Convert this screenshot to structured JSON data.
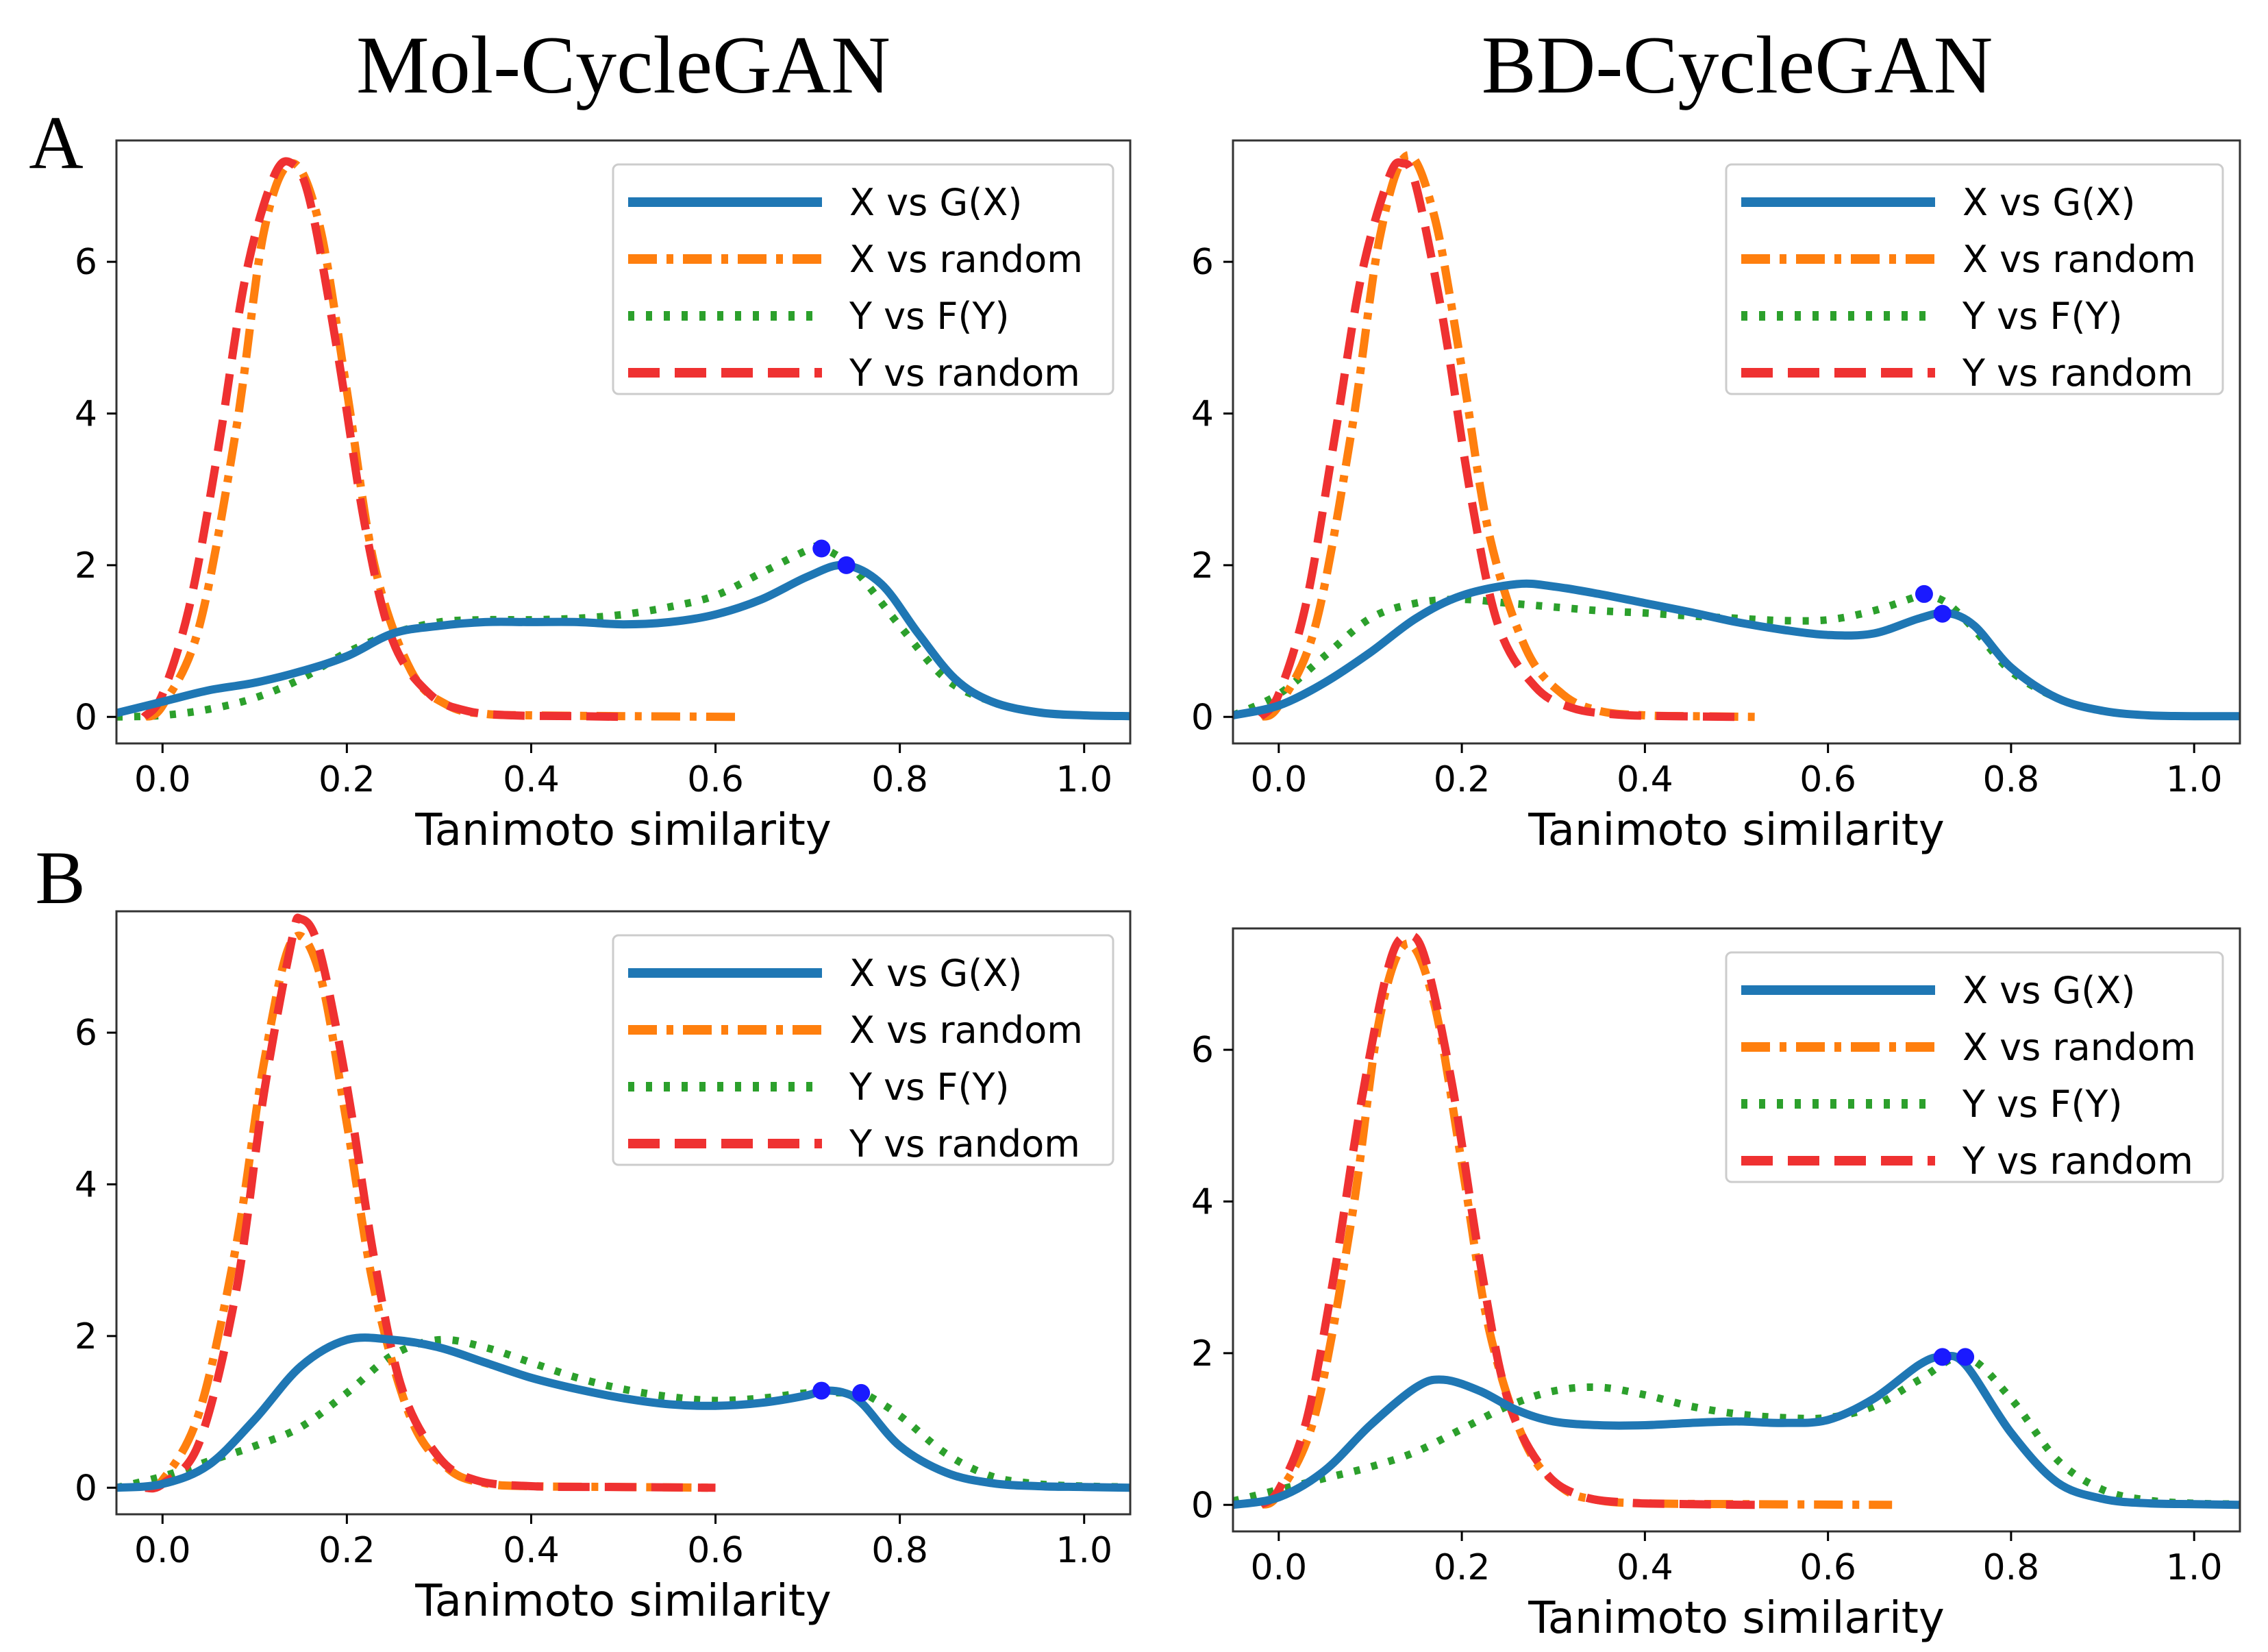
{
  "column_titles": [
    "Mol-CycleGAN",
    "BD-CycleGAN"
  ],
  "row_labels": [
    "A",
    "B"
  ],
  "styles": {
    "X vs G(X)": {
      "color": "#1f77b4",
      "dash": "none"
    },
    "X vs random": {
      "color": "#ff7f0e",
      "dash": "dashdot"
    },
    "Y vs F(Y)": {
      "color": "#2ca02c",
      "dash": "dotted"
    },
    "Y vs random": {
      "color": "#ef3131",
      "dash": "dashed"
    },
    "marker": "#1a1aff"
  },
  "chart_data": [
    {
      "type": "line",
      "panel": "A / Mol-CycleGAN",
      "xlabel": "Tanimoto similarity",
      "ylabel": "",
      "xlim": [
        -0.05,
        1.05
      ],
      "ylim": [
        -0.35,
        7.6
      ],
      "xticks": [
        "0.0",
        "0.2",
        "0.4",
        "0.6",
        "0.8",
        "1.0"
      ],
      "yticks": [
        "0",
        "2",
        "4",
        "6"
      ],
      "legend": [
        "X vs G(X)",
        "X vs random",
        "Y vs F(Y)",
        "Y vs random"
      ],
      "series": [
        {
          "name": "X vs G(X)",
          "x": [
            -0.05,
            0.0,
            0.05,
            0.1,
            0.15,
            0.2,
            0.25,
            0.3,
            0.35,
            0.4,
            0.45,
            0.5,
            0.55,
            0.6,
            0.65,
            0.7,
            0.74,
            0.78,
            0.82,
            0.86,
            0.9,
            0.95,
            1.0,
            1.05
          ],
          "y": [
            0.05,
            0.2,
            0.35,
            0.45,
            0.6,
            0.8,
            1.1,
            1.2,
            1.25,
            1.25,
            1.25,
            1.22,
            1.25,
            1.35,
            1.55,
            1.85,
            2.0,
            1.75,
            1.1,
            0.5,
            0.2,
            0.06,
            0.02,
            0.01
          ]
        },
        {
          "name": "X vs random",
          "x": [
            -0.02,
            0.0,
            0.04,
            0.08,
            0.11,
            0.14,
            0.17,
            0.2,
            0.23,
            0.27,
            0.31,
            0.35,
            0.4,
            0.5,
            0.63
          ],
          "y": [
            0.0,
            0.15,
            1.2,
            3.8,
            6.4,
            7.3,
            6.5,
            4.3,
            2.0,
            0.6,
            0.15,
            0.04,
            0.02,
            0.01,
            0.0
          ]
        },
        {
          "name": "Y vs F(Y)",
          "x": [
            -0.05,
            0.0,
            0.05,
            0.1,
            0.15,
            0.2,
            0.25,
            0.3,
            0.35,
            0.4,
            0.45,
            0.5,
            0.55,
            0.6,
            0.65,
            0.7,
            0.715,
            0.75,
            0.8,
            0.85,
            0.9,
            0.95,
            1.0,
            1.05
          ],
          "y": [
            0.0,
            0.02,
            0.1,
            0.25,
            0.5,
            0.85,
            1.1,
            1.25,
            1.28,
            1.28,
            1.3,
            1.35,
            1.45,
            1.6,
            1.9,
            2.2,
            2.23,
            1.95,
            1.2,
            0.5,
            0.2,
            0.06,
            0.02,
            0.01
          ]
        },
        {
          "name": "Y vs random",
          "x": [
            -0.02,
            0.0,
            0.03,
            0.06,
            0.09,
            0.12,
            0.14,
            0.16,
            0.19,
            0.22,
            0.25,
            0.29,
            0.33,
            0.38,
            0.45,
            0.5
          ],
          "y": [
            0.0,
            0.3,
            1.5,
            3.5,
            5.8,
            7.1,
            7.3,
            6.8,
            4.8,
            2.5,
            1.0,
            0.3,
            0.08,
            0.02,
            0.01,
            0.0
          ]
        }
      ],
      "markers": [
        {
          "x": 0.715,
          "y": 2.22
        },
        {
          "x": 0.742,
          "y": 2.0
        }
      ]
    },
    {
      "type": "line",
      "panel": "A / BD-CycleGAN",
      "xlabel": "Tanimoto similarity",
      "ylabel": "",
      "xlim": [
        -0.05,
        1.05
      ],
      "ylim": [
        -0.35,
        7.6
      ],
      "xticks": [
        "0.0",
        "0.2",
        "0.4",
        "0.6",
        "0.8",
        "1.0"
      ],
      "yticks": [
        "0",
        "2",
        "4",
        "6"
      ],
      "legend": [
        "X vs G(X)",
        "X vs random",
        "Y vs F(Y)",
        "Y vs random"
      ],
      "series": [
        {
          "name": "X vs G(X)",
          "x": [
            -0.05,
            0.0,
            0.05,
            0.1,
            0.15,
            0.2,
            0.26,
            0.3,
            0.35,
            0.4,
            0.45,
            0.5,
            0.55,
            0.6,
            0.65,
            0.7,
            0.73,
            0.76,
            0.8,
            0.85,
            0.9,
            0.95,
            1.0,
            1.05
          ],
          "y": [
            0.02,
            0.15,
            0.45,
            0.85,
            1.3,
            1.6,
            1.75,
            1.72,
            1.62,
            1.5,
            1.38,
            1.25,
            1.15,
            1.08,
            1.1,
            1.3,
            1.37,
            1.2,
            0.65,
            0.25,
            0.08,
            0.02,
            0.01,
            0.01
          ]
        },
        {
          "name": "X vs random",
          "x": [
            -0.02,
            0.0,
            0.04,
            0.08,
            0.11,
            0.14,
            0.17,
            0.2,
            0.23,
            0.27,
            0.31,
            0.35,
            0.4,
            0.45,
            0.52
          ],
          "y": [
            0.0,
            0.15,
            1.2,
            3.8,
            6.3,
            7.4,
            6.6,
            4.6,
            2.4,
            0.9,
            0.3,
            0.08,
            0.02,
            0.01,
            0.0
          ]
        },
        {
          "name": "Y vs F(Y)",
          "x": [
            -0.05,
            0.0,
            0.05,
            0.1,
            0.15,
            0.2,
            0.25,
            0.3,
            0.35,
            0.4,
            0.45,
            0.5,
            0.55,
            0.6,
            0.65,
            0.7,
            0.705,
            0.73,
            0.76,
            0.8,
            0.85,
            0.9,
            0.95,
            1.0,
            1.05
          ],
          "y": [
            0.02,
            0.3,
            0.8,
            1.3,
            1.5,
            1.55,
            1.5,
            1.45,
            1.4,
            1.37,
            1.33,
            1.3,
            1.27,
            1.28,
            1.4,
            1.6,
            1.62,
            1.5,
            1.15,
            0.6,
            0.25,
            0.08,
            0.02,
            0.01,
            0.01
          ]
        },
        {
          "name": "Y vs random",
          "x": [
            -0.02,
            0.0,
            0.03,
            0.06,
            0.09,
            0.12,
            0.135,
            0.15,
            0.18,
            0.21,
            0.24,
            0.28,
            0.32,
            0.37,
            0.43,
            0.5
          ],
          "y": [
            0.0,
            0.3,
            1.5,
            3.6,
            5.8,
            7.1,
            7.3,
            7.0,
            5.2,
            2.9,
            1.2,
            0.4,
            0.12,
            0.03,
            0.01,
            0.0
          ]
        }
      ],
      "markers": [
        {
          "x": 0.705,
          "y": 1.62
        },
        {
          "x": 0.725,
          "y": 1.36
        }
      ]
    },
    {
      "type": "line",
      "panel": "B / Mol-CycleGAN",
      "xlabel": "Tanimoto similarity",
      "ylabel": "",
      "xlim": [
        -0.05,
        1.05
      ],
      "ylim": [
        -0.35,
        7.6
      ],
      "xticks": [
        "0.0",
        "0.2",
        "0.4",
        "0.6",
        "0.8",
        "1.0"
      ],
      "yticks": [
        "0",
        "2",
        "4",
        "6"
      ],
      "legend": [
        "X vs G(X)",
        "X vs random",
        "Y vs F(Y)",
        "Y vs random"
      ],
      "series": [
        {
          "name": "X vs G(X)",
          "x": [
            -0.05,
            0.0,
            0.05,
            0.1,
            0.15,
            0.2,
            0.25,
            0.3,
            0.35,
            0.4,
            0.45,
            0.5,
            0.55,
            0.6,
            0.65,
            0.7,
            0.715,
            0.74,
            0.76,
            0.8,
            0.85,
            0.9,
            0.95,
            1.0,
            1.05
          ],
          "y": [
            0.0,
            0.05,
            0.3,
            0.9,
            1.6,
            1.95,
            1.95,
            1.85,
            1.65,
            1.45,
            1.3,
            1.18,
            1.1,
            1.08,
            1.12,
            1.22,
            1.28,
            1.25,
            1.1,
            0.55,
            0.2,
            0.06,
            0.02,
            0.01,
            0.0
          ]
        },
        {
          "name": "X vs random",
          "x": [
            -0.02,
            0.0,
            0.04,
            0.08,
            0.11,
            0.14,
            0.17,
            0.2,
            0.23,
            0.27,
            0.31,
            0.35,
            0.4,
            0.5,
            0.6
          ],
          "y": [
            0.0,
            0.1,
            1.0,
            3.2,
            5.6,
            7.2,
            6.8,
            4.8,
            2.6,
            0.9,
            0.25,
            0.06,
            0.02,
            0.01,
            0.0
          ]
        },
        {
          "name": "Y vs F(Y)",
          "x": [
            -0.05,
            0.0,
            0.05,
            0.1,
            0.15,
            0.2,
            0.25,
            0.3,
            0.35,
            0.4,
            0.45,
            0.5,
            0.55,
            0.6,
            0.65,
            0.7,
            0.75,
            0.76,
            0.8,
            0.85,
            0.9,
            0.95,
            1.0,
            1.05
          ],
          "y": [
            0.0,
            0.15,
            0.35,
            0.55,
            0.8,
            1.25,
            1.75,
            1.95,
            1.85,
            1.65,
            1.45,
            1.3,
            1.2,
            1.15,
            1.18,
            1.25,
            1.25,
            1.25,
            0.95,
            0.45,
            0.15,
            0.05,
            0.02,
            0.01
          ]
        },
        {
          "name": "Y vs random",
          "x": [
            -0.02,
            0.0,
            0.04,
            0.08,
            0.11,
            0.14,
            0.15,
            0.17,
            0.2,
            0.23,
            0.26,
            0.3,
            0.34,
            0.4,
            0.5,
            0.6
          ],
          "y": [
            0.0,
            0.05,
            0.6,
            2.6,
            5.2,
            7.2,
            7.5,
            7.1,
            5.3,
            3.0,
            1.3,
            0.4,
            0.1,
            0.02,
            0.01,
            0.0
          ]
        }
      ],
      "markers": [
        {
          "x": 0.715,
          "y": 1.28
        },
        {
          "x": 0.758,
          "y": 1.25
        }
      ]
    },
    {
      "type": "line",
      "panel": "B / BD-CycleGAN",
      "xlabel": "Tanimoto similarity",
      "ylabel": "",
      "xlim": [
        -0.05,
        1.05
      ],
      "ylim": [
        -0.35,
        7.6
      ],
      "xticks": [
        "0.0",
        "0.2",
        "0.4",
        "0.6",
        "0.8",
        "1.0"
      ],
      "yticks": [
        "0",
        "2",
        "4",
        "6"
      ],
      "legend": [
        "X vs G(X)",
        "X vs random",
        "Y vs F(Y)",
        "Y vs random"
      ],
      "series": [
        {
          "name": "X vs G(X)",
          "x": [
            -0.05,
            0.0,
            0.05,
            0.1,
            0.15,
            0.18,
            0.22,
            0.26,
            0.3,
            0.35,
            0.4,
            0.45,
            0.5,
            0.55,
            0.6,
            0.65,
            0.7,
            0.725,
            0.75,
            0.8,
            0.85,
            0.9,
            0.95,
            1.0,
            1.05
          ],
          "y": [
            0.0,
            0.1,
            0.45,
            1.05,
            1.55,
            1.65,
            1.5,
            1.25,
            1.1,
            1.05,
            1.05,
            1.08,
            1.1,
            1.08,
            1.12,
            1.4,
            1.85,
            1.95,
            1.85,
            0.95,
            0.3,
            0.08,
            0.02,
            0.01,
            0.0
          ]
        },
        {
          "name": "X vs random",
          "x": [
            -0.02,
            0.0,
            0.04,
            0.08,
            0.11,
            0.14,
            0.17,
            0.2,
            0.23,
            0.27,
            0.31,
            0.35,
            0.4,
            0.5,
            0.67
          ],
          "y": [
            0.0,
            0.15,
            1.2,
            3.8,
            6.4,
            7.4,
            6.6,
            4.5,
            2.3,
            0.8,
            0.22,
            0.06,
            0.02,
            0.01,
            0.0
          ]
        },
        {
          "name": "Y vs F(Y)",
          "x": [
            -0.05,
            0.0,
            0.05,
            0.1,
            0.15,
            0.2,
            0.25,
            0.3,
            0.35,
            0.4,
            0.45,
            0.5,
            0.55,
            0.6,
            0.65,
            0.7,
            0.75,
            0.8,
            0.85,
            0.9,
            0.95,
            1.0,
            1.05
          ],
          "y": [
            0.05,
            0.2,
            0.35,
            0.5,
            0.7,
            1.0,
            1.3,
            1.5,
            1.55,
            1.45,
            1.3,
            1.2,
            1.15,
            1.15,
            1.3,
            1.65,
            1.95,
            1.4,
            0.6,
            0.2,
            0.06,
            0.02,
            0.01
          ]
        },
        {
          "name": "Y vs random",
          "x": [
            -0.02,
            0.0,
            0.03,
            0.06,
            0.09,
            0.12,
            0.14,
            0.16,
            0.19,
            0.22,
            0.25,
            0.29,
            0.33,
            0.38,
            0.45,
            0.52
          ],
          "y": [
            0.0,
            0.2,
            1.1,
            3.0,
            5.3,
            7.1,
            7.5,
            7.2,
            5.5,
            3.2,
            1.4,
            0.45,
            0.12,
            0.03,
            0.01,
            0.0
          ]
        }
      ],
      "markers": [
        {
          "x": 0.725,
          "y": 1.95
        },
        {
          "x": 0.75,
          "y": 1.95
        }
      ]
    }
  ]
}
